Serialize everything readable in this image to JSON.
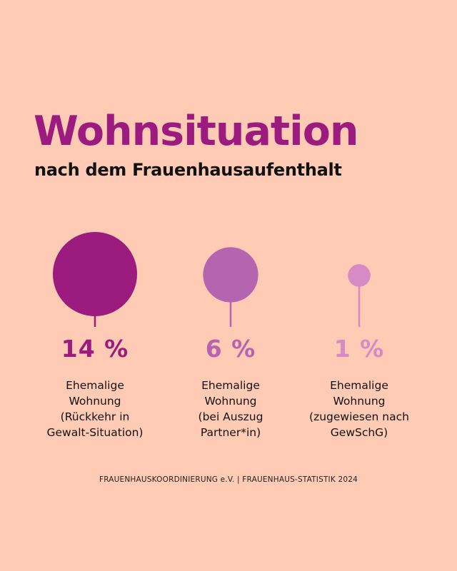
{
  "title": "Wohnsituation",
  "subtitle": "nach dem Frauenhausaufenthalt",
  "colors": {
    "background": "#FFCBB4",
    "title": "#9B1B7E"
  },
  "chart_data": {
    "type": "bubble-lollipop",
    "unit": "%",
    "categories": [
      "Ehemalige\nWohnung\n(Rückkehr in\nGewalt-Situation)",
      "Ehemalige\nWohnung\n(bei Auszug\nPartner*in)",
      "Ehemalige\nWohnung\n(zugewiesen nach\nGewSchG)"
    ],
    "values": [
      14,
      6,
      1
    ],
    "value_labels": [
      "14 %",
      "6 %",
      "1 %"
    ],
    "colors": [
      "#9B1B7E",
      "#B565AF",
      "#D68AC6"
    ]
  },
  "footer": "FRAUENHAUSKOORDINIERUNG e.V. | FRAUENHAUS-STATISTIK 2024"
}
